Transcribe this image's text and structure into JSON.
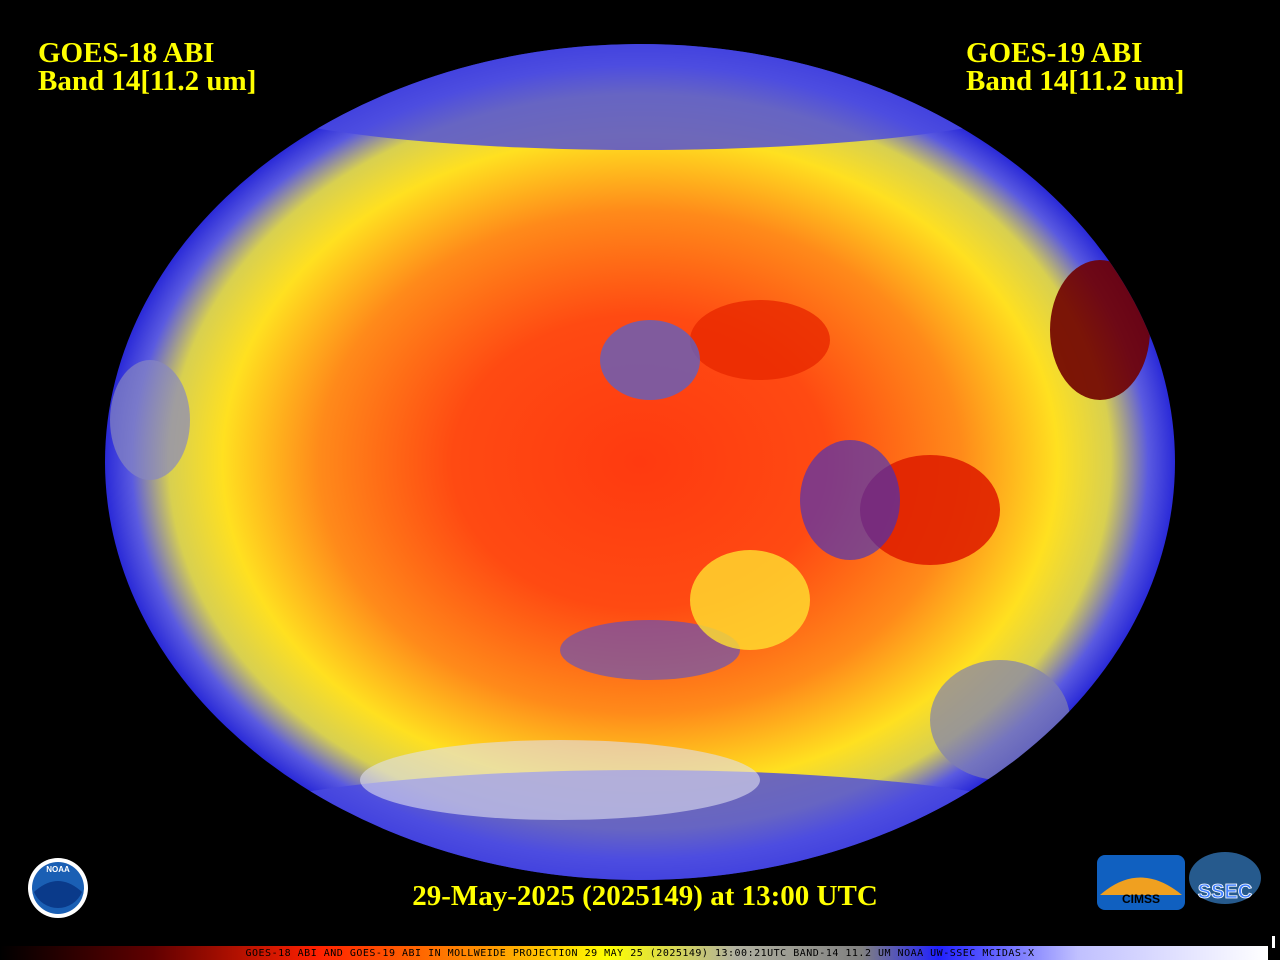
{
  "header": {
    "left": {
      "title": "GOES-18 ABI",
      "band": "Band 14[11.2 um]"
    },
    "right": {
      "title": "GOES-19 ABI",
      "band": "Band 14[11.2 um]"
    }
  },
  "timestamp": "29-May-2025 (2025149) at 13:00 UTC",
  "footer": "GOES-18 ABI AND GOES-19 ABI IN MOLLWEIDE PROJECTION 29 MAY 25 (2025149) 13:00:21UTC BAND-14 11.2 UM NOAA UW-SSEC MCIDAS-X",
  "logos": {
    "noaa": "NOAA",
    "cimss": "CIMSS",
    "ssec": "SSEC"
  }
}
